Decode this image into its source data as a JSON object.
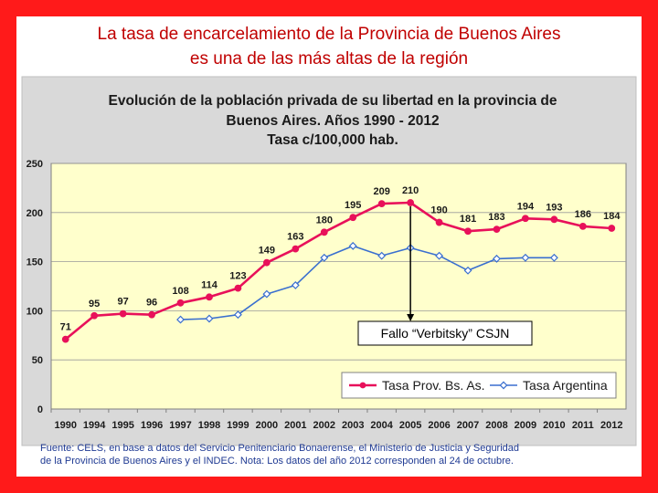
{
  "slide": {
    "heading_line1": "La tasa de encarcelamiento de la Provincia de Buenos Aires",
    "heading_line2": "es una de las más altas de la región",
    "source_line1": "Fuente: CELS, en base a datos del Servicio Penitenciario Bonaerense, el Ministerio de Justicia y Seguridad",
    "source_line2": "de la Provincia de Buenos Aires y el INDEC. Nota: Los datos del año 2012 corresponden al 24 de octubre."
  },
  "colors": {
    "frame": "#ff1a1a",
    "heading": "#c00000",
    "plot_bg": "#ffffcc",
    "outer_bg": "#d9d9d9",
    "prov_line": "#e8105a",
    "arg_line": "#3a6fcf",
    "source_text": "#1f3a93"
  },
  "chart_data": {
    "type": "line",
    "title_lines": [
      "Evolución de la población privada de su libertad en la provincia de",
      "Buenos Aires. Años 1990 - 2012",
      "Tasa c/100,000 hab."
    ],
    "categories": [
      "1990",
      "1994",
      "1995",
      "1996",
      "1997",
      "1998",
      "1999",
      "2000",
      "2001",
      "2002",
      "2003",
      "2004",
      "2005",
      "2006",
      "2007",
      "2008",
      "2009",
      "2010",
      "2011",
      "2012"
    ],
    "ylim": [
      0,
      250
    ],
    "yticks": [
      0,
      50,
      100,
      150,
      200,
      250
    ],
    "grid": true,
    "legend_position": "bottom-right",
    "series": [
      {
        "name": "Tasa Prov. Bs. As.",
        "marker": "circle",
        "values": [
          71,
          95,
          97,
          96,
          108,
          114,
          123,
          149,
          163,
          180,
          195,
          209,
          210,
          190,
          181,
          183,
          194,
          193,
          186,
          184
        ],
        "labels": [
          "71",
          "95",
          "97",
          "96",
          "108",
          "114",
          "123",
          "149",
          "163",
          "180",
          "195",
          "209",
          "210",
          "190",
          "181",
          "183",
          "194",
          "193",
          "186",
          "184"
        ]
      },
      {
        "name": "Tasa Argentina",
        "marker": "diamond",
        "values": [
          null,
          null,
          null,
          null,
          91,
          92,
          96,
          117,
          126,
          154,
          166,
          156,
          164,
          156,
          141,
          153,
          154,
          154,
          null,
          null
        ]
      }
    ],
    "annotation": {
      "text": "Fallo “Verbitsky” CSJN",
      "category": "2005"
    }
  }
}
